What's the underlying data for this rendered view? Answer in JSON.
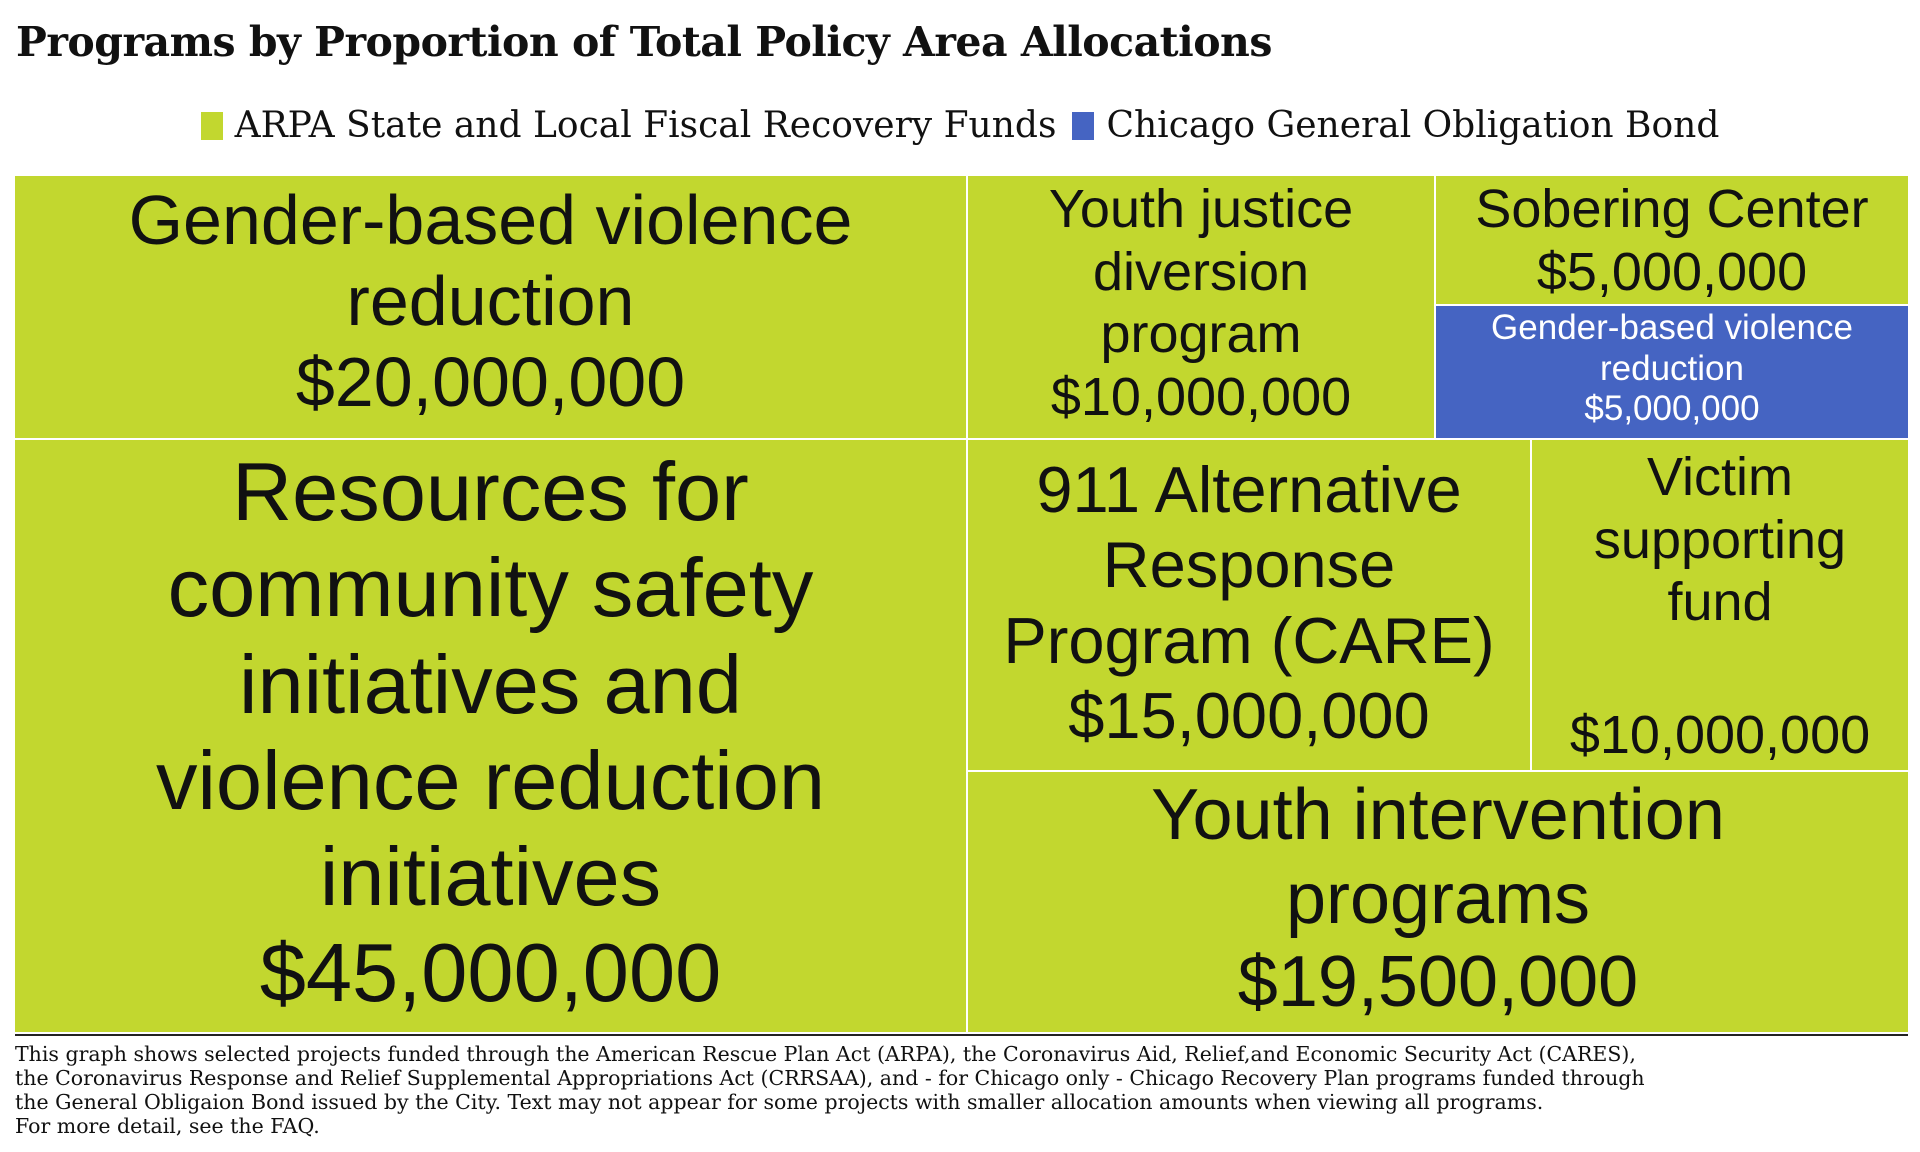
{
  "title": "Programs by Proportion of Total Policy Area Allocations",
  "legend": [
    {
      "label": "ARPA State and Local Fiscal Recovery Funds",
      "color": "#c2d72f"
    },
    {
      "label": "Chicago General Obligation Bond",
      "color": "#4564c2"
    }
  ],
  "chart_data": {
    "type": "treemap",
    "title": "Programs by Proportion of Total Policy Area Allocations",
    "series_colors": {
      "ARPA State and Local Fiscal Recovery Funds": "#c2d72f",
      "Chicago General Obligation Bond": "#4564c2"
    },
    "tiles": [
      {
        "label_lines": [
          "Gender-based violence",
          "reduction"
        ],
        "value_text": "$20,000,000",
        "value": 20000000,
        "fund": "ARPA State and Local Fiscal Recovery Funds"
      },
      {
        "label_lines": [
          "Youth justice",
          "diversion",
          "program"
        ],
        "value_text": "$10,000,000",
        "value": 10000000,
        "fund": "ARPA State and Local Fiscal Recovery Funds"
      },
      {
        "label_lines": [
          "Sobering Center"
        ],
        "value_text": "$5,000,000",
        "value": 5000000,
        "fund": "ARPA State and Local Fiscal Recovery Funds"
      },
      {
        "label_lines": [
          "Gender-based violence",
          "reduction"
        ],
        "value_text": "$5,000,000",
        "value": 5000000,
        "fund": "Chicago General Obligation Bond"
      },
      {
        "label_lines": [
          "Resources for",
          "community safety",
          "initiatives and",
          "violence reduction",
          "initiatives"
        ],
        "value_text": "$45,000,000",
        "value": 45000000,
        "fund": "ARPA State and Local Fiscal Recovery Funds"
      },
      {
        "label_lines": [
          "911 Alternative",
          "Response",
          "Program (CARE)"
        ],
        "value_text": "$15,000,000",
        "value": 15000000,
        "fund": "ARPA State and Local Fiscal Recovery Funds"
      },
      {
        "label_lines": [
          "Victim",
          "supporting",
          "fund"
        ],
        "value_text": "$10,000,000",
        "value": 10000000,
        "fund": "ARPA State and Local Fiscal Recovery Funds"
      },
      {
        "label_lines": [
          "Youth intervention",
          "programs"
        ],
        "value_text": "$19,500,000",
        "value": 19500000,
        "fund": "ARPA State and Local Fiscal Recovery Funds"
      }
    ]
  },
  "footnote": [
    "This graph shows selected projects funded through the American Rescue Plan Act (ARPA), the Coronavirus Aid, Relief,and Economic Security Act (CARES),",
    "the Coronavirus Response and Relief Supplemental Appropriations Act (CRRSAA), and - for Chicago only - Chicago Recovery Plan programs funded through",
    "the General Obligaion Bond issued by the City. Text may not appear for some projects with smaller allocation amounts when viewing all programs.",
    "For more detail, see the FAQ."
  ]
}
